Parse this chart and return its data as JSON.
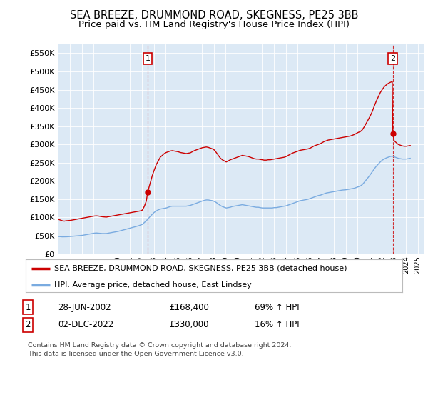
{
  "title": "SEA BREEZE, DRUMMOND ROAD, SKEGNESS, PE25 3BB",
  "subtitle": "Price paid vs. HM Land Registry's House Price Index (HPI)",
  "title_fontsize": 10.5,
  "subtitle_fontsize": 9.5,
  "plot_bg_color": "#dce9f5",
  "fig_bg_color": "#ffffff",
  "ylabel_values": [
    0,
    50000,
    100000,
    150000,
    200000,
    250000,
    300000,
    350000,
    400000,
    450000,
    500000,
    550000
  ],
  "ylim": [
    0,
    575000
  ],
  "xlim_start": 1995.0,
  "xlim_end": 2025.5,
  "red_line_color": "#cc0000",
  "blue_line_color": "#7aabe0",
  "purchase1_date_x": 2002.49,
  "purchase1_price": 168400,
  "purchase2_date_x": 2022.92,
  "purchase2_price": 330000,
  "legend_label_red": "SEA BREEZE, DRUMMOND ROAD, SKEGNESS, PE25 3BB (detached house)",
  "legend_label_blue": "HPI: Average price, detached house, East Lindsey",
  "note1_label": "1",
  "note1_date": "28-JUN-2002",
  "note1_price": "£168,400",
  "note1_hpi": "69% ↑ HPI",
  "note2_label": "2",
  "note2_date": "02-DEC-2022",
  "note2_price": "£330,000",
  "note2_hpi": "16% ↑ HPI",
  "footer": "Contains HM Land Registry data © Crown copyright and database right 2024.\nThis data is licensed under the Open Government Licence v3.0.",
  "hpi_red_data": [
    [
      1995.04,
      95000
    ],
    [
      1995.21,
      93000
    ],
    [
      1995.38,
      91000
    ],
    [
      1995.54,
      90000
    ],
    [
      1995.71,
      91000
    ],
    [
      1995.88,
      91500
    ],
    [
      1996.04,
      92000
    ],
    [
      1996.21,
      93000
    ],
    [
      1996.38,
      94000
    ],
    [
      1996.54,
      95000
    ],
    [
      1996.71,
      96000
    ],
    [
      1996.88,
      97000
    ],
    [
      1997.04,
      98000
    ],
    [
      1997.21,
      99000
    ],
    [
      1997.38,
      100000
    ],
    [
      1997.54,
      101000
    ],
    [
      1997.71,
      102000
    ],
    [
      1997.88,
      103000
    ],
    [
      1998.04,
      104000
    ],
    [
      1998.21,
      104500
    ],
    [
      1998.38,
      104000
    ],
    [
      1998.54,
      103000
    ],
    [
      1998.71,
      102000
    ],
    [
      1998.88,
      101500
    ],
    [
      1999.04,
      101000
    ],
    [
      1999.21,
      102000
    ],
    [
      1999.38,
      103000
    ],
    [
      1999.54,
      104000
    ],
    [
      1999.71,
      105000
    ],
    [
      1999.88,
      106000
    ],
    [
      2000.04,
      107000
    ],
    [
      2000.21,
      108000
    ],
    [
      2000.38,
      109000
    ],
    [
      2000.54,
      110000
    ],
    [
      2000.71,
      111000
    ],
    [
      2000.88,
      112000
    ],
    [
      2001.04,
      113000
    ],
    [
      2001.21,
      114000
    ],
    [
      2001.38,
      115000
    ],
    [
      2001.54,
      116000
    ],
    [
      2001.71,
      117000
    ],
    [
      2001.88,
      118000
    ],
    [
      2002.04,
      120000
    ],
    [
      2002.21,
      130000
    ],
    [
      2002.38,
      145000
    ],
    [
      2002.49,
      168400
    ],
    [
      2002.54,
      175000
    ],
    [
      2002.71,
      195000
    ],
    [
      2002.88,
      215000
    ],
    [
      2003.04,
      230000
    ],
    [
      2003.21,
      245000
    ],
    [
      2003.38,
      255000
    ],
    [
      2003.54,
      265000
    ],
    [
      2003.71,
      270000
    ],
    [
      2003.88,
      275000
    ],
    [
      2004.04,
      278000
    ],
    [
      2004.21,
      280000
    ],
    [
      2004.38,
      282000
    ],
    [
      2004.54,
      283000
    ],
    [
      2004.71,
      282000
    ],
    [
      2004.88,
      281000
    ],
    [
      2005.04,
      280000
    ],
    [
      2005.21,
      278000
    ],
    [
      2005.38,
      277000
    ],
    [
      2005.54,
      276000
    ],
    [
      2005.71,
      275000
    ],
    [
      2005.88,
      276000
    ],
    [
      2006.04,
      277000
    ],
    [
      2006.21,
      280000
    ],
    [
      2006.38,
      283000
    ],
    [
      2006.54,
      285000
    ],
    [
      2006.71,
      287000
    ],
    [
      2006.88,
      289000
    ],
    [
      2007.04,
      291000
    ],
    [
      2007.21,
      292000
    ],
    [
      2007.38,
      293000
    ],
    [
      2007.54,
      292000
    ],
    [
      2007.71,
      290000
    ],
    [
      2007.88,
      288000
    ],
    [
      2008.04,
      285000
    ],
    [
      2008.21,
      278000
    ],
    [
      2008.38,
      270000
    ],
    [
      2008.54,
      263000
    ],
    [
      2008.71,
      258000
    ],
    [
      2008.88,
      255000
    ],
    [
      2009.04,
      252000
    ],
    [
      2009.21,
      255000
    ],
    [
      2009.38,
      258000
    ],
    [
      2009.54,
      260000
    ],
    [
      2009.71,
      262000
    ],
    [
      2009.88,
      264000
    ],
    [
      2010.04,
      266000
    ],
    [
      2010.21,
      268000
    ],
    [
      2010.38,
      270000
    ],
    [
      2010.54,
      269000
    ],
    [
      2010.71,
      268000
    ],
    [
      2010.88,
      267000
    ],
    [
      2011.04,
      265000
    ],
    [
      2011.21,
      263000
    ],
    [
      2011.38,
      261000
    ],
    [
      2011.54,
      260000
    ],
    [
      2011.71,
      260000
    ],
    [
      2011.88,
      259000
    ],
    [
      2012.04,
      258000
    ],
    [
      2012.21,
      257000
    ],
    [
      2012.38,
      257000
    ],
    [
      2012.54,
      258000
    ],
    [
      2012.71,
      258000
    ],
    [
      2012.88,
      259000
    ],
    [
      2013.04,
      260000
    ],
    [
      2013.21,
      261000
    ],
    [
      2013.38,
      262000
    ],
    [
      2013.54,
      263000
    ],
    [
      2013.71,
      264000
    ],
    [
      2013.88,
      265000
    ],
    [
      2014.04,
      267000
    ],
    [
      2014.21,
      270000
    ],
    [
      2014.38,
      273000
    ],
    [
      2014.54,
      276000
    ],
    [
      2014.71,
      278000
    ],
    [
      2014.88,
      280000
    ],
    [
      2015.04,
      282000
    ],
    [
      2015.21,
      284000
    ],
    [
      2015.38,
      285000
    ],
    [
      2015.54,
      286000
    ],
    [
      2015.71,
      287000
    ],
    [
      2015.88,
      288000
    ],
    [
      2016.04,
      290000
    ],
    [
      2016.21,
      293000
    ],
    [
      2016.38,
      296000
    ],
    [
      2016.54,
      298000
    ],
    [
      2016.71,
      300000
    ],
    [
      2016.88,
      302000
    ],
    [
      2017.04,
      305000
    ],
    [
      2017.21,
      308000
    ],
    [
      2017.38,
      310000
    ],
    [
      2017.54,
      312000
    ],
    [
      2017.71,
      313000
    ],
    [
      2017.88,
      314000
    ],
    [
      2018.04,
      315000
    ],
    [
      2018.21,
      316000
    ],
    [
      2018.38,
      317000
    ],
    [
      2018.54,
      318000
    ],
    [
      2018.71,
      319000
    ],
    [
      2018.88,
      320000
    ],
    [
      2019.04,
      321000
    ],
    [
      2019.21,
      322000
    ],
    [
      2019.38,
      323000
    ],
    [
      2019.54,
      325000
    ],
    [
      2019.71,
      327000
    ],
    [
      2019.88,
      330000
    ],
    [
      2020.04,
      333000
    ],
    [
      2020.21,
      335000
    ],
    [
      2020.38,
      340000
    ],
    [
      2020.54,
      348000
    ],
    [
      2020.71,
      358000
    ],
    [
      2020.88,
      368000
    ],
    [
      2021.04,
      378000
    ],
    [
      2021.21,
      390000
    ],
    [
      2021.38,
      405000
    ],
    [
      2021.54,
      418000
    ],
    [
      2021.71,
      430000
    ],
    [
      2021.88,
      442000
    ],
    [
      2022.04,
      450000
    ],
    [
      2022.21,
      458000
    ],
    [
      2022.38,
      463000
    ],
    [
      2022.54,
      467000
    ],
    [
      2022.71,
      470000
    ],
    [
      2022.88,
      472000
    ],
    [
      2022.92,
      330000
    ],
    [
      2023.04,
      310000
    ],
    [
      2023.21,
      305000
    ],
    [
      2023.38,
      300000
    ],
    [
      2023.54,
      298000
    ],
    [
      2023.71,
      296000
    ],
    [
      2023.88,
      295000
    ],
    [
      2024.04,
      295000
    ],
    [
      2024.21,
      296000
    ],
    [
      2024.38,
      297000
    ]
  ],
  "hpi_blue_data": [
    [
      1995.04,
      48000
    ],
    [
      1995.21,
      47500
    ],
    [
      1995.38,
      47000
    ],
    [
      1995.54,
      47000
    ],
    [
      1995.71,
      47200
    ],
    [
      1995.88,
      47500
    ],
    [
      1996.04,
      48000
    ],
    [
      1996.21,
      48500
    ],
    [
      1996.38,
      49000
    ],
    [
      1996.54,
      49500
    ],
    [
      1996.71,
      50000
    ],
    [
      1996.88,
      50500
    ],
    [
      1997.04,
      51000
    ],
    [
      1997.21,
      52000
    ],
    [
      1997.38,
      53000
    ],
    [
      1997.54,
      54000
    ],
    [
      1997.71,
      55000
    ],
    [
      1997.88,
      56000
    ],
    [
      1998.04,
      57000
    ],
    [
      1998.21,
      57500
    ],
    [
      1998.38,
      57000
    ],
    [
      1998.54,
      56500
    ],
    [
      1998.71,
      56000
    ],
    [
      1998.88,
      56000
    ],
    [
      1999.04,
      56000
    ],
    [
      1999.21,
      57000
    ],
    [
      1999.38,
      58000
    ],
    [
      1999.54,
      59000
    ],
    [
      1999.71,
      60000
    ],
    [
      1999.88,
      61000
    ],
    [
      2000.04,
      62000
    ],
    [
      2000.21,
      63500
    ],
    [
      2000.38,
      65000
    ],
    [
      2000.54,
      66500
    ],
    [
      2000.71,
      68000
    ],
    [
      2000.88,
      69500
    ],
    [
      2001.04,
      71000
    ],
    [
      2001.21,
      72500
    ],
    [
      2001.38,
      74000
    ],
    [
      2001.54,
      75500
    ],
    [
      2001.71,
      77000
    ],
    [
      2001.88,
      79000
    ],
    [
      2002.04,
      81000
    ],
    [
      2002.21,
      86000
    ],
    [
      2002.38,
      91000
    ],
    [
      2002.54,
      97000
    ],
    [
      2002.71,
      103000
    ],
    [
      2002.88,
      109000
    ],
    [
      2003.04,
      114000
    ],
    [
      2003.21,
      118000
    ],
    [
      2003.38,
      121000
    ],
    [
      2003.54,
      123000
    ],
    [
      2003.71,
      124000
    ],
    [
      2003.88,
      125000
    ],
    [
      2004.04,
      126000
    ],
    [
      2004.21,
      128000
    ],
    [
      2004.38,
      130000
    ],
    [
      2004.54,
      131000
    ],
    [
      2004.71,
      131000
    ],
    [
      2004.88,
      131000
    ],
    [
      2005.04,
      131000
    ],
    [
      2005.21,
      131000
    ],
    [
      2005.38,
      131000
    ],
    [
      2005.54,
      131000
    ],
    [
      2005.71,
      131000
    ],
    [
      2005.88,
      132000
    ],
    [
      2006.04,
      133000
    ],
    [
      2006.21,
      135000
    ],
    [
      2006.38,
      137000
    ],
    [
      2006.54,
      139000
    ],
    [
      2006.71,
      141000
    ],
    [
      2006.88,
      143000
    ],
    [
      2007.04,
      145000
    ],
    [
      2007.21,
      147000
    ],
    [
      2007.38,
      148000
    ],
    [
      2007.54,
      148000
    ],
    [
      2007.71,
      147000
    ],
    [
      2007.88,
      146000
    ],
    [
      2008.04,
      144000
    ],
    [
      2008.21,
      141000
    ],
    [
      2008.38,
      137000
    ],
    [
      2008.54,
      133000
    ],
    [
      2008.71,
      130000
    ],
    [
      2008.88,
      128000
    ],
    [
      2009.04,
      126000
    ],
    [
      2009.21,
      127000
    ],
    [
      2009.38,
      128000
    ],
    [
      2009.54,
      130000
    ],
    [
      2009.71,
      131000
    ],
    [
      2009.88,
      132000
    ],
    [
      2010.04,
      133000
    ],
    [
      2010.21,
      134000
    ],
    [
      2010.38,
      135000
    ],
    [
      2010.54,
      134000
    ],
    [
      2010.71,
      133000
    ],
    [
      2010.88,
      132000
    ],
    [
      2011.04,
      131000
    ],
    [
      2011.21,
      130000
    ],
    [
      2011.38,
      129000
    ],
    [
      2011.54,
      128000
    ],
    [
      2011.71,
      128000
    ],
    [
      2011.88,
      127000
    ],
    [
      2012.04,
      126000
    ],
    [
      2012.21,
      126000
    ],
    [
      2012.38,
      126000
    ],
    [
      2012.54,
      126000
    ],
    [
      2012.71,
      126000
    ],
    [
      2012.88,
      126000
    ],
    [
      2013.04,
      127000
    ],
    [
      2013.21,
      127000
    ],
    [
      2013.38,
      128000
    ],
    [
      2013.54,
      129000
    ],
    [
      2013.71,
      130000
    ],
    [
      2013.88,
      131000
    ],
    [
      2014.04,
      132000
    ],
    [
      2014.21,
      134000
    ],
    [
      2014.38,
      136000
    ],
    [
      2014.54,
      138000
    ],
    [
      2014.71,
      140000
    ],
    [
      2014.88,
      142000
    ],
    [
      2015.04,
      144000
    ],
    [
      2015.21,
      146000
    ],
    [
      2015.38,
      147000
    ],
    [
      2015.54,
      148000
    ],
    [
      2015.71,
      149000
    ],
    [
      2015.88,
      150000
    ],
    [
      2016.04,
      152000
    ],
    [
      2016.21,
      154000
    ],
    [
      2016.38,
      156000
    ],
    [
      2016.54,
      158000
    ],
    [
      2016.71,
      160000
    ],
    [
      2016.88,
      161000
    ],
    [
      2017.04,
      163000
    ],
    [
      2017.21,
      165000
    ],
    [
      2017.38,
      167000
    ],
    [
      2017.54,
      168000
    ],
    [
      2017.71,
      169000
    ],
    [
      2017.88,
      170000
    ],
    [
      2018.04,
      171000
    ],
    [
      2018.21,
      172000
    ],
    [
      2018.38,
      173000
    ],
    [
      2018.54,
      174000
    ],
    [
      2018.71,
      175000
    ],
    [
      2018.88,
      175500
    ],
    [
      2019.04,
      176000
    ],
    [
      2019.21,
      177000
    ],
    [
      2019.38,
      178000
    ],
    [
      2019.54,
      179000
    ],
    [
      2019.71,
      180000
    ],
    [
      2019.88,
      182000
    ],
    [
      2020.04,
      184000
    ],
    [
      2020.21,
      186000
    ],
    [
      2020.38,
      190000
    ],
    [
      2020.54,
      196000
    ],
    [
      2020.71,
      203000
    ],
    [
      2020.88,
      210000
    ],
    [
      2021.04,
      217000
    ],
    [
      2021.21,
      225000
    ],
    [
      2021.38,
      233000
    ],
    [
      2021.54,
      240000
    ],
    [
      2021.71,
      246000
    ],
    [
      2021.88,
      252000
    ],
    [
      2022.04,
      257000
    ],
    [
      2022.21,
      260000
    ],
    [
      2022.38,
      263000
    ],
    [
      2022.54,
      265000
    ],
    [
      2022.71,
      267000
    ],
    [
      2022.88,
      268000
    ],
    [
      2023.04,
      266000
    ],
    [
      2023.21,
      264000
    ],
    [
      2023.38,
      262000
    ],
    [
      2023.54,
      261000
    ],
    [
      2023.71,
      260000
    ],
    [
      2023.88,
      260000
    ],
    [
      2024.04,
      260000
    ],
    [
      2024.21,
      261000
    ],
    [
      2024.38,
      262000
    ]
  ]
}
